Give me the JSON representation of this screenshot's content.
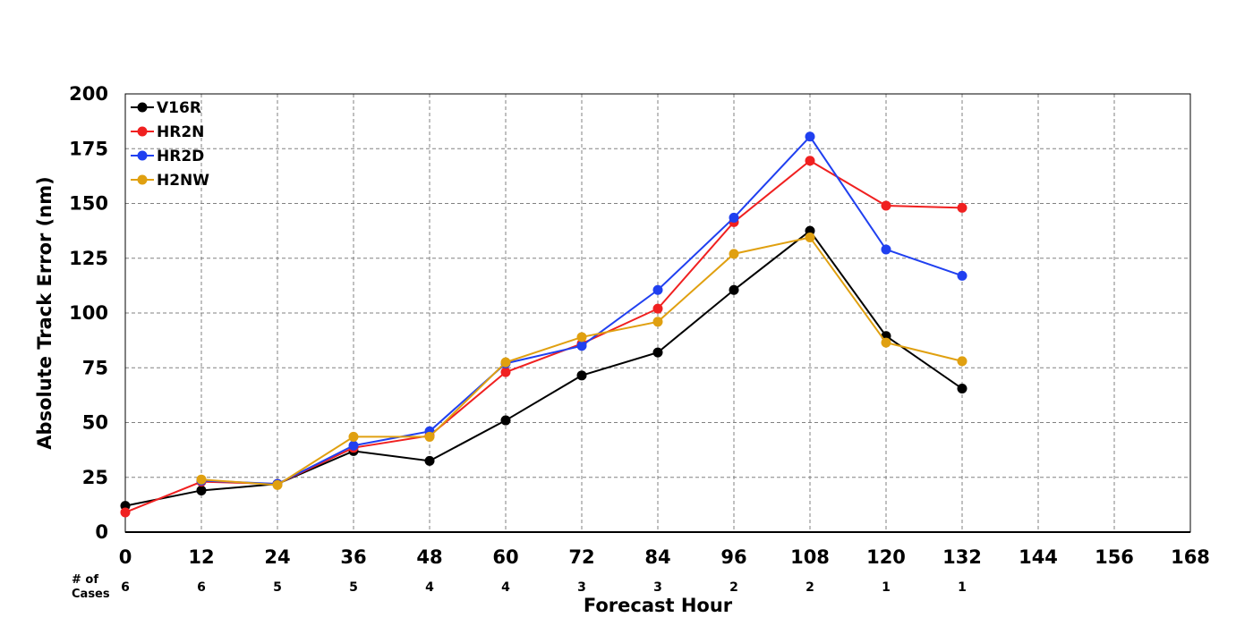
{
  "chart_data": {
    "type": "line",
    "xlabel": "Forecast Hour",
    "ylabel": "Absolute Track Error (nm)",
    "xlim": [
      0,
      168
    ],
    "ylim": [
      0,
      200
    ],
    "x_ticks": [
      0,
      12,
      24,
      36,
      48,
      60,
      72,
      84,
      96,
      108,
      120,
      132,
      144,
      156,
      168
    ],
    "y_ticks": [
      0,
      25,
      50,
      75,
      100,
      125,
      150,
      175,
      200
    ],
    "grid": true,
    "legend_position": "top-left",
    "cases_heading": [
      "# of",
      "Cases"
    ],
    "cases": [
      {
        "x": 0,
        "n": "6"
      },
      {
        "x": 12,
        "n": "6"
      },
      {
        "x": 24,
        "n": "5"
      },
      {
        "x": 36,
        "n": "5"
      },
      {
        "x": 48,
        "n": "4"
      },
      {
        "x": 60,
        "n": "4"
      },
      {
        "x": 72,
        "n": "3"
      },
      {
        "x": 84,
        "n": "3"
      },
      {
        "x": 96,
        "n": "2"
      },
      {
        "x": 108,
        "n": "2"
      },
      {
        "x": 120,
        "n": "1"
      },
      {
        "x": 132,
        "n": "1"
      }
    ],
    "series": [
      {
        "name": "V16R",
        "color": "#000000",
        "x": [
          0,
          12,
          24,
          36,
          48,
          60,
          72,
          84,
          96,
          108,
          120,
          132
        ],
        "values": [
          12,
          19,
          22,
          37,
          32.5,
          51,
          71.5,
          82,
          110.5,
          137.5,
          89.5,
          65.5
        ]
      },
      {
        "name": "HR2N",
        "color": "#f02020",
        "x": [
          0,
          12,
          24,
          36,
          48,
          60,
          72,
          84,
          96,
          108,
          120,
          132
        ],
        "values": [
          9,
          23,
          22,
          38.5,
          44,
          73,
          86,
          102,
          141.5,
          169.5,
          149,
          148
        ]
      },
      {
        "name": "HR2D",
        "color": "#2040f0",
        "x": [
          12,
          24,
          36,
          48,
          60,
          72,
          84,
          96,
          108,
          120,
          132
        ],
        "values": [
          23.5,
          22,
          39.5,
          46,
          77,
          85,
          110.5,
          143.5,
          180.5,
          129,
          117
        ]
      },
      {
        "name": "H2NW",
        "color": "#e0a010",
        "x": [
          12,
          24,
          36,
          48,
          60,
          72,
          84,
          96,
          108,
          120,
          132
        ],
        "values": [
          24,
          21.5,
          43.5,
          43.5,
          77.5,
          89,
          96,
          127,
          134.5,
          86.5,
          78
        ]
      }
    ]
  }
}
